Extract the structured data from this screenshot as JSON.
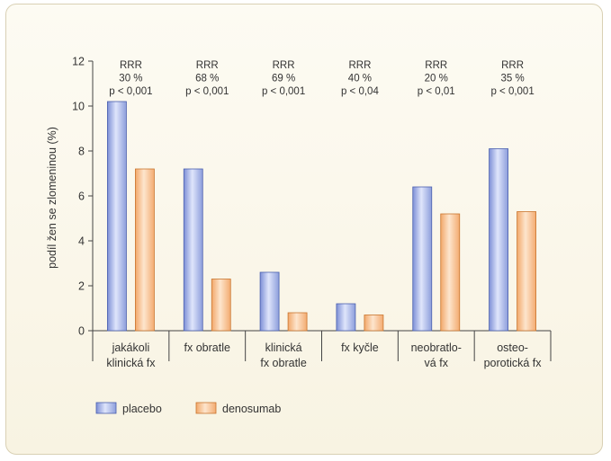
{
  "chart_data": {
    "type": "bar",
    "ylabel": "podíl žen se zlomeninou (%)",
    "ylim": [
      0,
      12
    ],
    "yticks": [
      0,
      2,
      4,
      6,
      8,
      10,
      12
    ],
    "grid": false,
    "legend_position": "bottom-left",
    "categories": [
      [
        "jakákoli",
        "klinická fx"
      ],
      [
        "fx obratle"
      ],
      [
        "klinická",
        "fx obratle"
      ],
      [
        "fx kyčle"
      ],
      [
        "neobratlo-",
        "vá fx"
      ],
      [
        "osteo-",
        "porotická fx"
      ]
    ],
    "annotations": [
      [
        "RRR",
        "30 %",
        "p < 0,001"
      ],
      [
        "RRR",
        "68 %",
        "p < 0,001"
      ],
      [
        "RRR",
        "69 %",
        "p < 0,001"
      ],
      [
        "RRR",
        "40 %",
        "p < 0,04"
      ],
      [
        "RRR",
        "20 %",
        "p < 0,01"
      ],
      [
        "RRR",
        "35 %",
        "p < 0,001"
      ]
    ],
    "series": [
      {
        "name": "placebo",
        "values": [
          10.2,
          7.2,
          2.6,
          1.2,
          6.4,
          8.1
        ],
        "color": "#aab8e6"
      },
      {
        "name": "denosumab",
        "values": [
          7.2,
          2.3,
          0.8,
          0.7,
          5.2,
          5.3
        ],
        "color": "#f7c08f"
      }
    ]
  }
}
